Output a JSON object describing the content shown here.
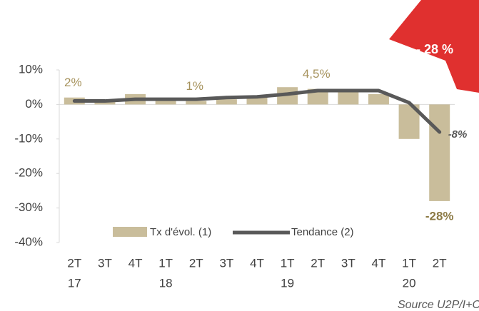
{
  "chart_data": {
    "type": "bar+line",
    "categories": [
      [
        "2T",
        "17"
      ],
      [
        "3T"
      ],
      [
        "4T"
      ],
      [
        "1T",
        "18"
      ],
      [
        "2T"
      ],
      [
        "3T"
      ],
      [
        "4T"
      ],
      [
        "1T",
        "19"
      ],
      [
        "2T"
      ],
      [
        "3T"
      ],
      [
        "4T"
      ],
      [
        "1T",
        "20"
      ],
      [
        "2T"
      ]
    ],
    "series": [
      {
        "name": "Tx d'évol. (1)",
        "type": "bar",
        "color": "#c9bd9b",
        "values": [
          2,
          1,
          3,
          1.5,
          1,
          1.5,
          2,
          5,
          4.5,
          4,
          3,
          -10,
          -28
        ],
        "value_labels": [
          "2%",
          null,
          null,
          null,
          "1%",
          null,
          null,
          null,
          "4,5%",
          null,
          null,
          null,
          "-28%"
        ]
      },
      {
        "name": "Tendance (2)",
        "type": "line",
        "color": "#595959",
        "values": [
          1,
          1,
          1.5,
          1.5,
          1.5,
          2,
          2.2,
          3,
          4,
          4,
          4,
          0.5,
          -8
        ],
        "value_labels": [
          null,
          null,
          null,
          null,
          null,
          null,
          null,
          null,
          null,
          null,
          null,
          null,
          "-8%"
        ]
      }
    ],
    "ylim": [
      -40,
      10
    ],
    "yticks": [
      {
        "value": -40,
        "label": "-40%"
      },
      {
        "value": -30,
        "label": "-30%"
      },
      {
        "value": -20,
        "label": "-20%"
      },
      {
        "value": -10,
        "label": "-10%"
      },
      {
        "value": 0,
        "label": "0%"
      },
      {
        "value": 10,
        "label": "10%"
      }
    ],
    "annotation": "- 28 %",
    "source": "Source U2P/I+C"
  }
}
